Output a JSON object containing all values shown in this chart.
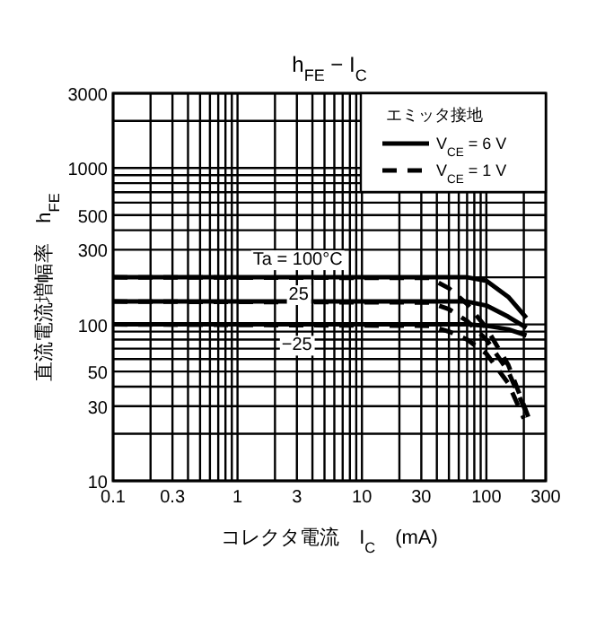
{
  "chart_data": {
    "type": "line",
    "title": "h$_{FE}$ − I$_{C}$",
    "xlabel": "コレクタ電流　I$_{C}$　(mA)",
    "ylabel": "直流電流増幅率　h$_{FE}$",
    "legend_title": "エミッタ接地",
    "log": "xy",
    "grid": true,
    "legend": "top right",
    "xlim": [
      0.1,
      300
    ],
    "ylim": [
      10,
      3000
    ],
    "xticks": [
      0.1,
      {
        "value": 0.2,
        "label": null
      },
      0.3,
      {
        "value": 0.4,
        "label": null
      },
      {
        "value": 0.5,
        "label": null
      },
      {
        "value": 0.6,
        "label": null
      },
      {
        "value": 0.7,
        "label": null
      },
      {
        "value": 0.8,
        "label": null
      },
      {
        "value": 0.9,
        "label": null
      },
      1,
      {
        "value": 2,
        "label": null
      },
      3,
      {
        "value": 4,
        "label": null
      },
      {
        "value": 5,
        "label": null
      },
      {
        "value": 6,
        "label": null
      },
      {
        "value": 7,
        "label": null
      },
      {
        "value": 8,
        "label": null
      },
      {
        "value": 9,
        "label": null
      },
      10,
      {
        "value": 20,
        "label": null
      },
      30,
      {
        "value": 40,
        "label": null
      },
      {
        "value": 50,
        "label": null
      },
      {
        "value": 60,
        "label": null
      },
      {
        "value": 70,
        "label": null
      },
      {
        "value": 80,
        "label": null
      },
      {
        "value": 90,
        "label": null
      },
      100,
      {
        "value": 200,
        "label": null
      },
      300
    ],
    "yticks": [
      10,
      {
        "value": 20,
        "label": null
      },
      30,
      {
        "value": 40,
        "label": null
      },
      50,
      {
        "value": 60,
        "label": null
      },
      {
        "value": 70,
        "label": null
      },
      {
        "value": 80,
        "label": null
      },
      {
        "value": 90,
        "label": null
      },
      100,
      {
        "value": 200,
        "label": null
      },
      300,
      {
        "value": 400,
        "label": null
      },
      500,
      {
        "value": 600,
        "label": null
      },
      {
        "value": 700,
        "label": null
      },
      {
        "value": 800,
        "label": null
      },
      {
        "value": 900,
        "label": null
      },
      1000,
      {
        "value": 2000,
        "label": null
      },
      3000
    ],
    "series": [
      {
        "name": "V$_{CE}$ = 6 V",
        "color": "#000000",
        "line_style": "solid",
        "x": [
          0.1,
          70,
          100,
          150,
          210
        ],
        "values": [
          200,
          200,
          190,
          150,
          110
        ]
      },
      {
        "color": "#000000",
        "line_style": "solid",
        "x": [
          0.1,
          70,
          100,
          150,
          210
        ],
        "values": [
          140,
          140,
          132,
          112,
          95
        ]
      },
      {
        "color": "#000000",
        "line_style": "solid",
        "x": [
          0.1,
          70,
          100,
          150,
          210
        ],
        "values": [
          100,
          100,
          98,
          93,
          85
        ]
      },
      {
        "name": "V$_{CE}$ = 1 V",
        "color": "#000000",
        "line_style": "dashed",
        "x": [
          0.1,
          35,
          50,
          70,
          100,
          150,
          220
        ],
        "values": [
          200,
          198,
          170,
          135,
          95,
          55,
          25
        ]
      },
      {
        "color": "#000000",
        "line_style": "dashed",
        "x": [
          0.1,
          35,
          50,
          70,
          100,
          150,
          220
        ],
        "values": [
          140,
          138,
          125,
          105,
          80,
          50,
          25
        ]
      },
      {
        "color": "#000000",
        "line_style": "dashed",
        "x": [
          0.1,
          35,
          50,
          70,
          100,
          150,
          200
        ],
        "values": [
          100,
          98,
          90,
          80,
          65,
          42,
          25
        ]
      }
    ],
    "annotations": [
      "Ta = 100°C",
      {
        "text": "25",
        "x": 3.1,
        "y": 160
      },
      {
        "text": "−25",
        "x": 3,
        "y": 76
      }
    ]
  }
}
